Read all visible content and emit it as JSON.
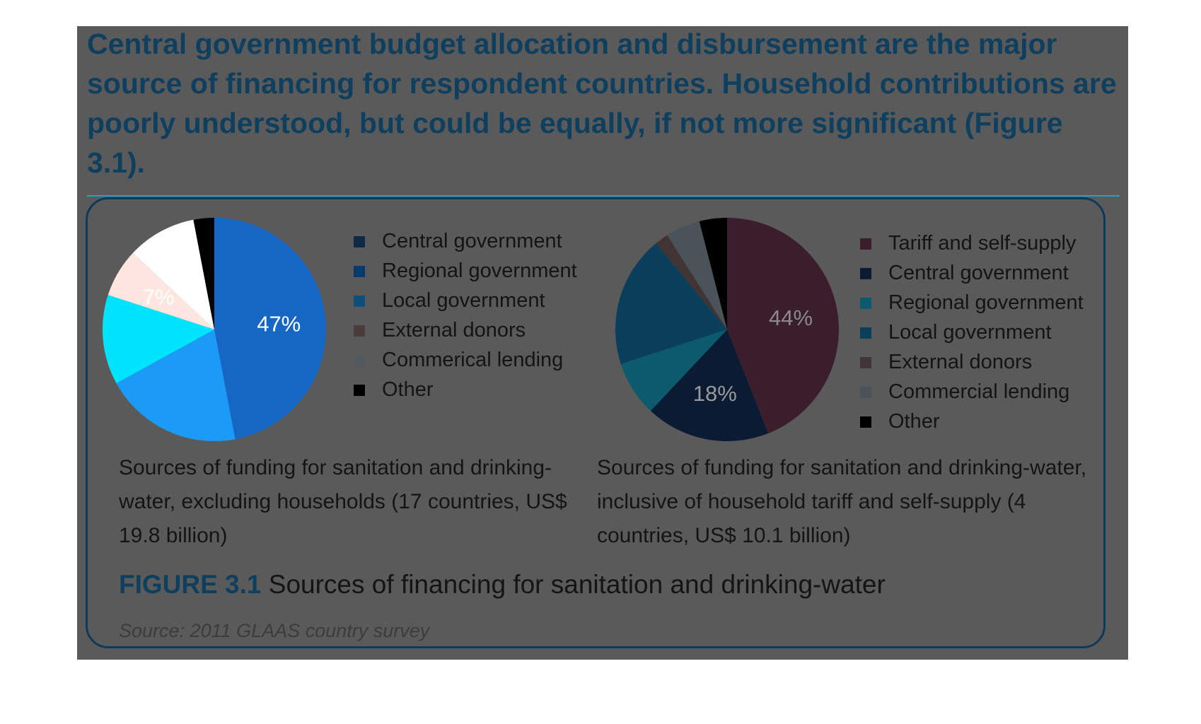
{
  "headline": "Central government budget allocation and disbursement are the major source of financing for respondent countries. Household contributions are poorly understood, but could be equally, if not more significant (Figure 3.1).",
  "figure": {
    "number": "FIGURE 3.1",
    "title": "Sources of financing for sanitation and drinking-water",
    "source": "Source: 2011 GLAAS country survey"
  },
  "chart_data": [
    {
      "type": "pie",
      "caption": "Sources of funding for sanitation and drinking-water, excluding households (17 countries, US$ 19.8 billion)",
      "slices": [
        {
          "label": "Central government",
          "value": 47,
          "display": "47%",
          "color": "#1667c4",
          "text_color": "#ffffff"
        },
        {
          "label": "Regional government",
          "value": 20,
          "display": "",
          "color": "#1b9bf5",
          "text_color": "#ffffff"
        },
        {
          "label": "Local government",
          "value": 13,
          "display": "",
          "color": "#00e4ff",
          "text_color": "#ffffff"
        },
        {
          "label": "External donors",
          "value": 7,
          "display": "7%",
          "color": "#ffe7e0",
          "text_color": "#ffffff"
        },
        {
          "label": "Commerical lending",
          "value": 10,
          "display": "",
          "color": "#ffffff",
          "text_color": "#ffffff"
        },
        {
          "label": "Other",
          "value": 3,
          "display": "",
          "color": "#000000",
          "text_color": "#ffffff"
        }
      ],
      "legend": [
        {
          "label": "Central government",
          "color": "#0e2a44"
        },
        {
          "label": "Regional government",
          "color": "#0a3a6a"
        },
        {
          "label": "Local government",
          "color": "#0d4f7a"
        },
        {
          "label": "External donors",
          "color": "#4a3c3c"
        },
        {
          "label": "Commerical lending",
          "color": "#525a5e"
        },
        {
          "label": "Other",
          "color": "#000000"
        }
      ]
    },
    {
      "type": "pie",
      "caption": "Sources of funding for sanitation and drinking-water, inclusive of household tariff and self-supply (4 countries, US$ 10.1 billion)",
      "slices": [
        {
          "label": "Tariff and self-supply",
          "value": 44,
          "display": "44%",
          "color": "#3b1e2b",
          "text_color": "#8a8a8a"
        },
        {
          "label": "Central government",
          "value": 18,
          "display": "18%",
          "color": "#0b1b33",
          "text_color": "#9a9a9a"
        },
        {
          "label": "Regional government",
          "value": 8,
          "display": "",
          "color": "#0c5a6e",
          "text_color": "#ffffff"
        },
        {
          "label": "Local government",
          "value": 19,
          "display": "",
          "color": "#0a3f5c",
          "text_color": "#ffffff"
        },
        {
          "label": "External donors",
          "value": 2,
          "display": "",
          "color": "#403434",
          "text_color": "#ffffff"
        },
        {
          "label": "Commercial lending",
          "value": 5,
          "display": "",
          "color": "#4a5358",
          "text_color": "#ffffff"
        },
        {
          "label": "Other",
          "value": 4,
          "display": "",
          "color": "#000000",
          "text_color": "#ffffff"
        }
      ],
      "legend": [
        {
          "label": "Tariff and self-supply",
          "color": "#3b1e2b"
        },
        {
          "label": "Central government",
          "color": "#0b1b33"
        },
        {
          "label": "Regional government",
          "color": "#0c5a6e"
        },
        {
          "label": "Local government",
          "color": "#0a3f5c"
        },
        {
          "label": "External donors",
          "color": "#403434"
        },
        {
          "label": "Commercial lending",
          "color": "#4a5358"
        },
        {
          "label": "Other",
          "color": "#000000"
        }
      ]
    }
  ]
}
